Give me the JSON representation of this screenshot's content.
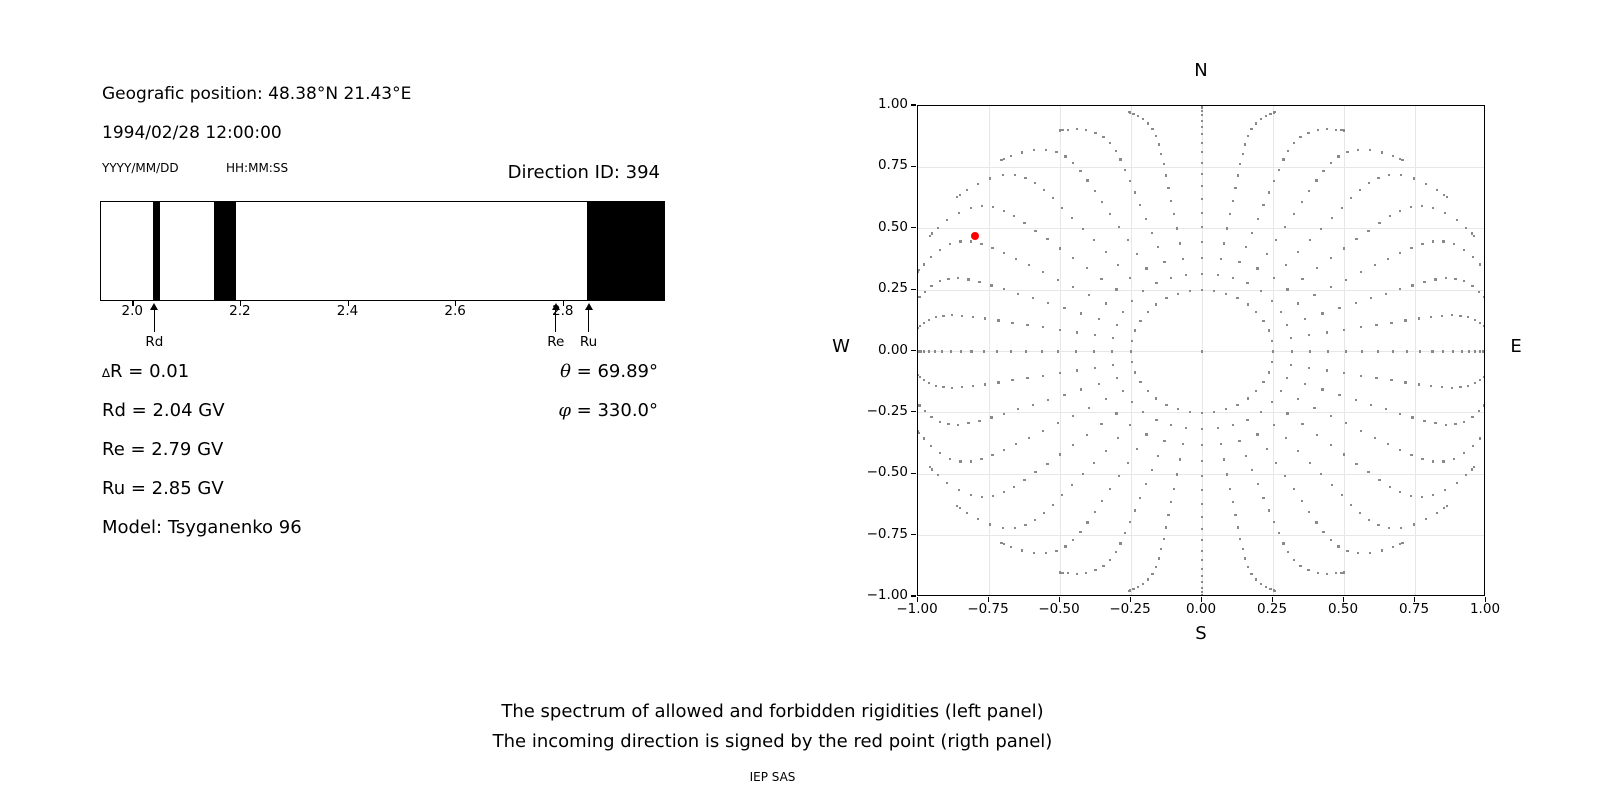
{
  "header": {
    "geographic_position": "Geografic position: 48.38°N 21.43°E",
    "datetime": "1994/02/28 12:00:00",
    "date_format_label": "YYYY/MM/DD",
    "time_format_label": "HH:MM:SS",
    "direction_id": "Direction ID: 394"
  },
  "values": {
    "delta_symbol": "∆",
    "delta_rest": "R = 0.01",
    "rd": "Rd = 2.04 GV",
    "re": "Re = 2.79 GV",
    "ru": "Ru = 2.85 GV",
    "model": "Model: Tsyganenko 96",
    "theta_symbol": "θ",
    "theta_rest": " = 69.89°",
    "phi_symbol": "φ",
    "phi_rest": " = 330.0°"
  },
  "caption": {
    "line1": "The spectrum of allowed and forbidden rigidities (left panel)",
    "line2": "The incoming direction is signed by the red point (rigth panel)",
    "credit": "IEP SAS"
  },
  "chart_data": [
    {
      "id": "rigidity_spectrum",
      "type": "bar",
      "description": "1-D spectrum strip: white = allowed rigidities, black = forbidden rigidity bands",
      "xlim": [
        1.94,
        2.99
      ],
      "xticks": [
        2.0,
        2.2,
        2.4,
        2.6,
        2.8
      ],
      "xtick_labels": [
        "2.0",
        "2.2",
        "2.4",
        "2.6",
        "2.8"
      ],
      "forbidden_bands": [
        [
          2.04,
          2.053
        ],
        [
          2.152,
          2.193
        ],
        [
          2.845,
          2.99
        ]
      ],
      "band_color": "#000000",
      "allowed_color": "#ffffff",
      "arrows": [
        {
          "label": "Rd",
          "x": 2.041
        },
        {
          "label": "Re",
          "x": 2.787
        },
        {
          "label": "Ru",
          "x": 2.848
        }
      ],
      "delta_R": 0.01,
      "Rd_GV": 2.04,
      "Re_GV": 2.79,
      "Ru_GV": 2.85
    },
    {
      "id": "incoming_direction_map",
      "type": "scatter",
      "description": "Sky map of arrival directions: 36 dotted spokes every 10° azimuth from inner ring r=0.25 to horizon r≈1, dots bunch and swirl near the rim; red point marks the incoming direction",
      "xlim": [
        -1.0,
        1.0
      ],
      "ylim": [
        -1.0,
        1.0
      ],
      "xticks": [
        -1.0,
        -0.75,
        -0.5,
        -0.25,
        0.0,
        0.25,
        0.5,
        0.75,
        1.0
      ],
      "yticks": [
        1.0,
        0.75,
        0.5,
        0.25,
        0.0,
        -0.25,
        -0.5,
        -0.75,
        -1.0
      ],
      "xtick_labels": [
        "−1.00",
        "−0.75",
        "−0.50",
        "−0.25",
        "0.00",
        "0.25",
        "0.50",
        "0.75",
        "1.00"
      ],
      "ytick_labels": [
        "1.00",
        "0.75",
        "0.50",
        "0.25",
        "0.00",
        "−0.25",
        "−0.50",
        "−0.75",
        "−1.00"
      ],
      "compass_labels": {
        "top": "N",
        "bottom": "S",
        "left": "W",
        "right": "E"
      },
      "grid": true,
      "grid_color": "#e7e7e7",
      "dot_color": "#8a8a8a",
      "spokes": {
        "azimuths_deg": [
          0,
          10,
          20,
          30,
          40,
          50,
          60,
          70,
          80,
          90,
          100,
          110,
          120,
          130,
          140,
          150,
          160,
          170,
          180,
          190,
          200,
          210,
          220,
          230,
          240,
          250,
          260,
          270,
          280,
          290,
          300,
          310,
          320,
          330,
          340,
          350
        ],
        "r_inner": 0.25,
        "dots_per_spoke": 20,
        "diagonal_stretch": 0.07,
        "swirl_deg": 14,
        "swirl_power": 14,
        "center_dot": true
      },
      "red_point": {
        "x": -0.8,
        "y": 0.47,
        "color": "#ff0000"
      }
    }
  ]
}
